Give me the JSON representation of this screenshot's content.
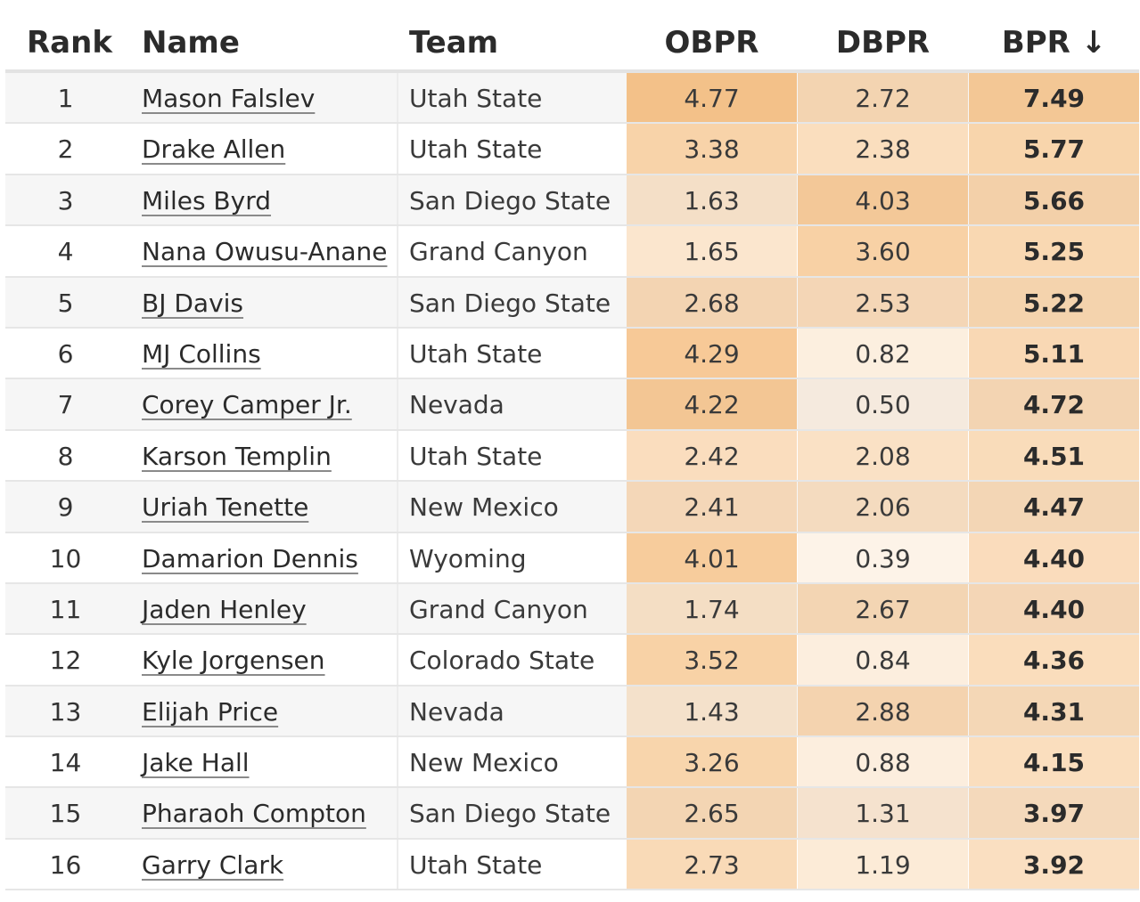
{
  "table": {
    "columns": {
      "rank": "Rank",
      "name": "Name",
      "team": "Team",
      "obpr": "OBPR",
      "dbpr": "DBPR",
      "bpr": "BPR ↓"
    },
    "heat_color_rgb": [
      240,
      160,
      70
    ],
    "rows": [
      {
        "rank": "1",
        "name": "Mason Falslev",
        "team": "Utah State",
        "obpr": "4.77",
        "dbpr": "2.72",
        "bpr": "7.49"
      },
      {
        "rank": "2",
        "name": "Drake Allen",
        "team": "Utah State",
        "obpr": "3.38",
        "dbpr": "2.38",
        "bpr": "5.77"
      },
      {
        "rank": "3",
        "name": "Miles Byrd",
        "team": "San Diego State",
        "obpr": "1.63",
        "dbpr": "4.03",
        "bpr": "5.66"
      },
      {
        "rank": "4",
        "name": "Nana Owusu-Anane",
        "team": "Grand Canyon",
        "obpr": "1.65",
        "dbpr": "3.60",
        "bpr": "5.25"
      },
      {
        "rank": "5",
        "name": "BJ Davis",
        "team": "San Diego State",
        "obpr": "2.68",
        "dbpr": "2.53",
        "bpr": "5.22"
      },
      {
        "rank": "6",
        "name": "MJ Collins",
        "team": "Utah State",
        "obpr": "4.29",
        "dbpr": "0.82",
        "bpr": "5.11"
      },
      {
        "rank": "7",
        "name": "Corey Camper Jr.",
        "team": "Nevada",
        "obpr": "4.22",
        "dbpr": "0.50",
        "bpr": "4.72"
      },
      {
        "rank": "8",
        "name": "Karson Templin",
        "team": "Utah State",
        "obpr": "2.42",
        "dbpr": "2.08",
        "bpr": "4.51"
      },
      {
        "rank": "9",
        "name": "Uriah Tenette",
        "team": "New Mexico",
        "obpr": "2.41",
        "dbpr": "2.06",
        "bpr": "4.47"
      },
      {
        "rank": "10",
        "name": "Damarion Dennis",
        "team": "Wyoming",
        "obpr": "4.01",
        "dbpr": "0.39",
        "bpr": "4.40"
      },
      {
        "rank": "11",
        "name": "Jaden Henley",
        "team": "Grand Canyon",
        "obpr": "1.74",
        "dbpr": "2.67",
        "bpr": "4.40"
      },
      {
        "rank": "12",
        "name": "Kyle Jorgensen",
        "team": "Colorado State",
        "obpr": "3.52",
        "dbpr": "0.84",
        "bpr": "4.36"
      },
      {
        "rank": "13",
        "name": "Elijah Price",
        "team": "Nevada",
        "obpr": "1.43",
        "dbpr": "2.88",
        "bpr": "4.31"
      },
      {
        "rank": "14",
        "name": "Jake Hall",
        "team": "New Mexico",
        "obpr": "3.26",
        "dbpr": "0.88",
        "bpr": "4.15"
      },
      {
        "rank": "15",
        "name": "Pharaoh Compton",
        "team": "San Diego State",
        "obpr": "2.65",
        "dbpr": "1.31",
        "bpr": "3.97"
      },
      {
        "rank": "16",
        "name": "Garry Clark",
        "team": "Utah State",
        "obpr": "2.73",
        "dbpr": "1.19",
        "bpr": "3.92"
      }
    ]
  }
}
